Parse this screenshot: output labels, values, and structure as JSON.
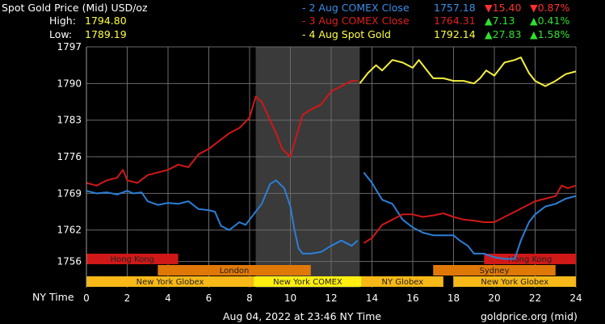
{
  "header": {
    "title": "Spot Gold Price (Mid) USD/oz",
    "high_label": "High:",
    "high_value": "1794.80",
    "low_label": "Low:",
    "low_value": "1789.19"
  },
  "legend": [
    {
      "label": "- 2 Aug COMEX Close",
      "price": "1757.18",
      "change": "▼15.40",
      "pct": "▼0.87%",
      "color": "#3a8ee8",
      "change_color": "#ff3030"
    },
    {
      "label": "- 3 Aug COMEX Close",
      "price": "1764.31",
      "change": "▲7.13",
      "pct": "▲0.41%",
      "color": "#e02020",
      "change_color": "#30e030"
    },
    {
      "label": "- 4 Aug Spot Gold",
      "price": "1792.14",
      "change": "▲27.83",
      "pct": "▲1.58%",
      "color": "#ffff40",
      "change_color": "#30e030"
    }
  ],
  "footer": {
    "x_axis_name": "NY Time",
    "timestamp": "Aug 04, 2022 at 23:46 NY Time",
    "source": "goldprice.org (mid)"
  },
  "chart_data": {
    "type": "line",
    "xlim": [
      0,
      24
    ],
    "ylim": [
      1751,
      1797
    ],
    "x_ticks": [
      "0",
      "2",
      "4",
      "6",
      "8",
      "10",
      "12",
      "14",
      "16",
      "18",
      "20",
      "22",
      "24"
    ],
    "y_ticks": [
      "1797",
      "1790",
      "1783",
      "1776",
      "1769",
      "1762",
      "1756"
    ],
    "grid": true,
    "shaded_range": [
      8.3,
      13.4
    ],
    "series": [
      {
        "name": "2 Aug COMEX Close",
        "color": "#2a7fd8",
        "segments": [
          [
            [
              0,
              1769.5
            ],
            [
              0.5,
              1769.0
            ],
            [
              1,
              1769.2
            ],
            [
              1.5,
              1768.8
            ],
            [
              2,
              1769.5
            ],
            [
              2.3,
              1769.0
            ],
            [
              2.7,
              1769.2
            ],
            [
              3,
              1767.5
            ],
            [
              3.5,
              1766.8
            ],
            [
              4,
              1767.2
            ],
            [
              4.5,
              1767.0
            ],
            [
              5,
              1767.5
            ],
            [
              5.5,
              1766.0
            ],
            [
              6,
              1765.8
            ],
            [
              6.3,
              1765.5
            ],
            [
              6.6,
              1762.8
            ],
            [
              7,
              1762.0
            ],
            [
              7.5,
              1763.5
            ],
            [
              7.8,
              1763.0
            ],
            [
              8.2,
              1765.0
            ],
            [
              8.6,
              1767.0
            ],
            [
              9,
              1770.8
            ],
            [
              9.3,
              1771.5
            ],
            [
              9.7,
              1770.0
            ],
            [
              10,
              1766.5
            ],
            [
              10.2,
              1762.0
            ],
            [
              10.4,
              1758.5
            ],
            [
              10.6,
              1757.5
            ],
            [
              11,
              1757.5
            ],
            [
              11.5,
              1757.8
            ],
            [
              12,
              1759.0
            ],
            [
              12.5,
              1760.0
            ],
            [
              13,
              1759.0
            ],
            [
              13.3,
              1760.0
            ]
          ],
          [
            [
              13.6,
              1773.0
            ],
            [
              14,
              1771.0
            ],
            [
              14.5,
              1767.8
            ],
            [
              15,
              1767.0
            ],
            [
              15.5,
              1764.0
            ],
            [
              16,
              1762.5
            ],
            [
              16.5,
              1761.5
            ],
            [
              17,
              1761.0
            ],
            [
              17.5,
              1761.0
            ],
            [
              18,
              1761.0
            ],
            [
              18.3,
              1760.0
            ],
            [
              18.7,
              1759.0
            ],
            [
              19,
              1757.5
            ],
            [
              19.5,
              1757.5
            ],
            [
              20,
              1756.8
            ],
            [
              20.5,
              1756.5
            ],
            [
              21,
              1756.5
            ],
            [
              21.3,
              1760.0
            ],
            [
              21.7,
              1763.5
            ],
            [
              22,
              1765.0
            ],
            [
              22.5,
              1766.5
            ],
            [
              23,
              1767.0
            ],
            [
              23.5,
              1768.0
            ],
            [
              24,
              1768.5
            ]
          ]
        ]
      },
      {
        "name": "3 Aug COMEX Close",
        "color": "#d01818",
        "segments": [
          [
            [
              0,
              1771.0
            ],
            [
              0.5,
              1770.5
            ],
            [
              1,
              1771.5
            ],
            [
              1.5,
              1772.0
            ],
            [
              1.8,
              1773.5
            ],
            [
              2,
              1771.5
            ],
            [
              2.5,
              1771.0
            ],
            [
              3,
              1772.5
            ],
            [
              3.5,
              1773.0
            ],
            [
              4,
              1773.5
            ],
            [
              4.5,
              1774.5
            ],
            [
              5,
              1774.0
            ],
            [
              5.5,
              1776.5
            ],
            [
              6,
              1777.5
            ],
            [
              6.5,
              1779.0
            ],
            [
              7,
              1780.5
            ],
            [
              7.5,
              1781.5
            ],
            [
              8,
              1783.5
            ],
            [
              8.3,
              1787.5
            ],
            [
              8.6,
              1786.5
            ],
            [
              9,
              1783.0
            ],
            [
              9.3,
              1780.5
            ],
            [
              9.6,
              1777.5
            ],
            [
              10,
              1776.0
            ],
            [
              10.3,
              1780.0
            ],
            [
              10.6,
              1784.0
            ],
            [
              11,
              1785.0
            ],
            [
              11.5,
              1786.0
            ],
            [
              12,
              1788.5
            ],
            [
              12.5,
              1789.5
            ],
            [
              13,
              1790.5
            ],
            [
              13.3,
              1790.5
            ]
          ],
          [
            [
              13.6,
              1759.5
            ],
            [
              14,
              1760.5
            ],
            [
              14.5,
              1763.0
            ],
            [
              15,
              1764.0
            ],
            [
              15.5,
              1765.0
            ],
            [
              16,
              1765.0
            ],
            [
              16.5,
              1764.5
            ],
            [
              17,
              1764.8
            ],
            [
              17.5,
              1765.2
            ],
            [
              18,
              1764.5
            ],
            [
              18.5,
              1764.0
            ],
            [
              19,
              1763.8
            ],
            [
              19.5,
              1763.5
            ],
            [
              20,
              1763.5
            ],
            [
              20.5,
              1764.5
            ],
            [
              21,
              1765.5
            ],
            [
              21.5,
              1766.5
            ],
            [
              22,
              1767.5
            ],
            [
              22.5,
              1768.0
            ],
            [
              23,
              1768.5
            ],
            [
              23.3,
              1770.5
            ],
            [
              23.6,
              1770.0
            ],
            [
              24,
              1770.5
            ]
          ]
        ]
      },
      {
        "name": "4 Aug Spot Gold",
        "color": "#f4f040",
        "segments": [
          [
            [
              13.4,
              1790.0
            ],
            [
              13.8,
              1792.0
            ],
            [
              14.2,
              1793.5
            ],
            [
              14.5,
              1792.5
            ],
            [
              15,
              1794.5
            ],
            [
              15.5,
              1794.0
            ],
            [
              16,
              1793.0
            ],
            [
              16.3,
              1794.5
            ],
            [
              16.7,
              1792.5
            ],
            [
              17,
              1791.0
            ],
            [
              17.5,
              1791.0
            ],
            [
              18,
              1790.5
            ],
            [
              18.5,
              1790.5
            ],
            [
              19,
              1790.0
            ],
            [
              19.3,
              1791.0
            ],
            [
              19.6,
              1792.5
            ],
            [
              20,
              1791.5
            ],
            [
              20.5,
              1794.0
            ],
            [
              21,
              1794.5
            ],
            [
              21.3,
              1795.0
            ],
            [
              21.7,
              1792.0
            ],
            [
              22,
              1790.5
            ],
            [
              22.5,
              1789.5
            ],
            [
              23,
              1790.5
            ],
            [
              23.5,
              1791.8
            ],
            [
              24,
              1792.3
            ]
          ]
        ]
      }
    ],
    "sessions": [
      {
        "name": "Hong Kong",
        "row": 0,
        "start": 0,
        "end": 4.5,
        "color": "#d01818"
      },
      {
        "name": "Hong Kong",
        "row": 0,
        "start": 19.5,
        "end": 24,
        "color": "#d01818"
      },
      {
        "name": "London",
        "row": 1,
        "start": 3.5,
        "end": 11.0,
        "color": "#e07808"
      },
      {
        "name": "Sydney",
        "row": 1,
        "start": 17.0,
        "end": 23.0,
        "color": "#e07808"
      },
      {
        "name": "New York Globex",
        "row": 2,
        "start": 0,
        "end": 8.2,
        "color": "#f8b818"
      },
      {
        "name": "New York COMEX",
        "row": 2,
        "start": 8.2,
        "end": 13.5,
        "color": "#ffee10"
      },
      {
        "name": "NY Globex",
        "row": 2,
        "start": 13.5,
        "end": 17.5,
        "color": "#f8b818"
      },
      {
        "name": "New York Globex",
        "row": 2,
        "start": 18.0,
        "end": 24,
        "color": "#f8b818"
      }
    ]
  }
}
